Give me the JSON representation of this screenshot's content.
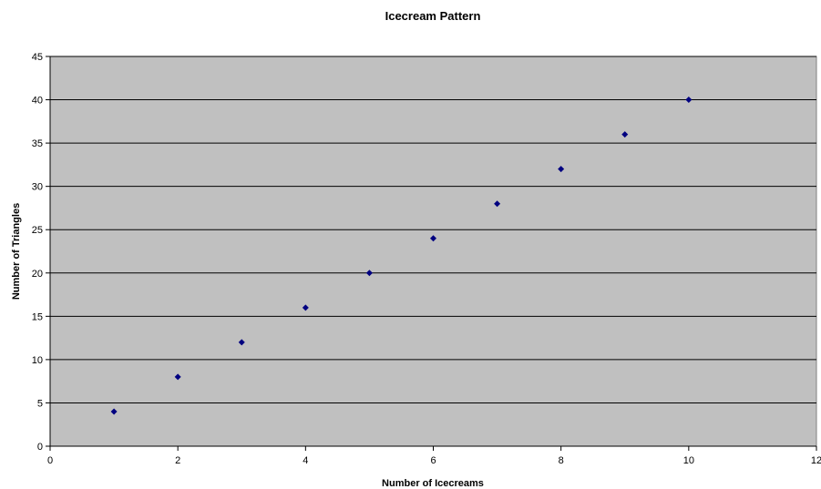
{
  "chart_data": {
    "type": "scatter",
    "title": "Icecream Pattern",
    "xlabel": "Number of Icecreams",
    "ylabel": "Number of Triangles",
    "xlim": [
      0,
      12
    ],
    "ylim": [
      0,
      45
    ],
    "xticks": [
      0,
      2,
      4,
      6,
      8,
      10,
      12
    ],
    "yticks": [
      0,
      5,
      10,
      15,
      20,
      25,
      30,
      35,
      40,
      45
    ],
    "grid": "horizontal",
    "legend": "none",
    "series": [
      {
        "x": [
          1,
          2,
          3,
          4,
          5,
          6,
          7,
          8,
          9,
          10
        ],
        "y": [
          4,
          8,
          12,
          16,
          20,
          24,
          28,
          32,
          36,
          40
        ]
      }
    ],
    "colors": {
      "plot_background": "#c0c0c0",
      "gridline": "#000000",
      "marker": "#000080"
    }
  }
}
